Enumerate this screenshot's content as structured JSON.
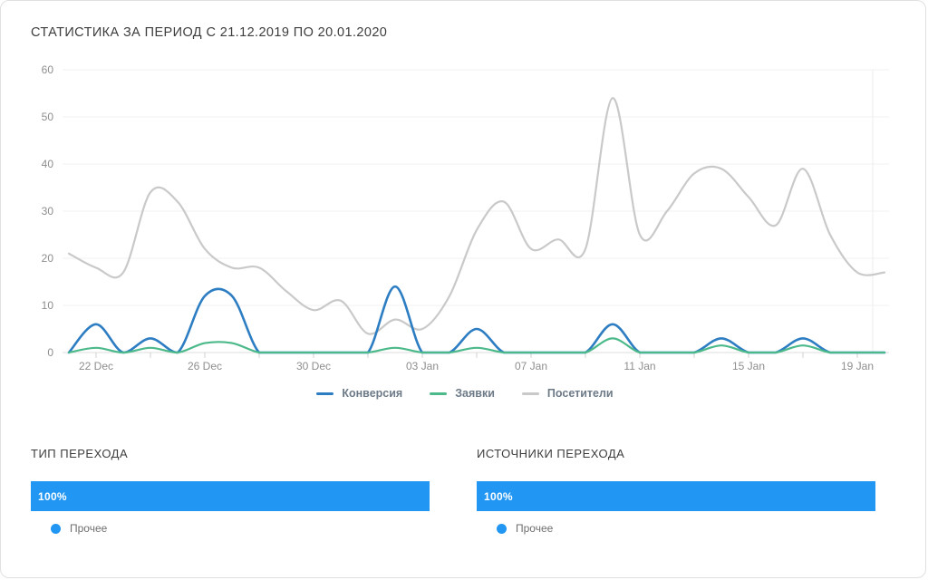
{
  "chart_data": [
    {
      "type": "line",
      "title": "СТАТИСТИКА ЗА ПЕРИОД С 21.12.2019 ПО 20.01.2020",
      "x": [
        "21 Dec",
        "22 Dec",
        "23 Dec",
        "24 Dec",
        "25 Dec",
        "26 Dec",
        "27 Dec",
        "28 Dec",
        "29 Dec",
        "30 Dec",
        "31 Dec",
        "01 Jan",
        "02 Jan",
        "03 Jan",
        "04 Jan",
        "05 Jan",
        "06 Jan",
        "07 Jan",
        "08 Jan",
        "09 Jan",
        "10 Jan",
        "11 Jan",
        "12 Jan",
        "13 Jan",
        "14 Jan",
        "15 Jan",
        "16 Jan",
        "17 Jan",
        "18 Jan",
        "19 Jan",
        "20 Jan"
      ],
      "x_ticks_shown": [
        "22 Dec",
        "26 Dec",
        "30 Dec",
        "03 Jan",
        "07 Jan",
        "11 Jan",
        "15 Jan",
        "19 Jan"
      ],
      "y_ticks": [
        0,
        10,
        20,
        30,
        40,
        50,
        60
      ],
      "ylim": [
        0,
        60
      ],
      "grid": true,
      "legend_position": "bottom",
      "series": [
        {
          "name": "Конверсия",
          "color": "#2d7dc3",
          "values": [
            0,
            6,
            0,
            3,
            0,
            12,
            12,
            0,
            0,
            0,
            0,
            0,
            14,
            0,
            0,
            5,
            0,
            0,
            0,
            0,
            6,
            0,
            0,
            0,
            3,
            0,
            0,
            3,
            0,
            0,
            0
          ]
        },
        {
          "name": "Заявки",
          "color": "#4cb98a",
          "values": [
            0,
            1,
            0,
            1,
            0,
            2,
            2,
            0,
            0,
            0,
            0,
            0,
            1,
            0,
            0,
            1,
            0,
            0,
            0,
            0,
            3,
            0,
            0,
            0,
            1.5,
            0,
            0,
            1.5,
            0,
            0,
            0
          ]
        },
        {
          "name": "Посетители",
          "color": "#c9c9c9",
          "values": [
            21,
            18,
            17,
            34,
            32,
            22,
            18,
            18,
            13,
            9,
            11,
            4,
            7,
            5,
            12,
            26,
            32,
            22,
            24,
            22,
            54,
            25,
            30,
            38,
            39,
            33,
            27,
            39,
            25,
            17,
            17
          ]
        }
      ]
    },
    {
      "type": "bar",
      "orientation": "horizontal",
      "title": "ТИП ПЕРЕХОДА",
      "categories": [
        "Прочее"
      ],
      "values": [
        100
      ],
      "value_labels": [
        "100%"
      ],
      "bar_color": "#2196f3"
    },
    {
      "type": "bar",
      "orientation": "horizontal",
      "title": "ИСТОЧНИКИ ПЕРЕХОДА",
      "categories": [
        "Прочее"
      ],
      "values": [
        100
      ],
      "value_labels": [
        "100%"
      ],
      "bar_color": "#2196f3"
    }
  ],
  "colors": {
    "accent_blue": "#2196f3",
    "grid_line": "#f0f0f0",
    "axis_line": "#dcdcdc",
    "axis_text": "#8e8e8e"
  }
}
